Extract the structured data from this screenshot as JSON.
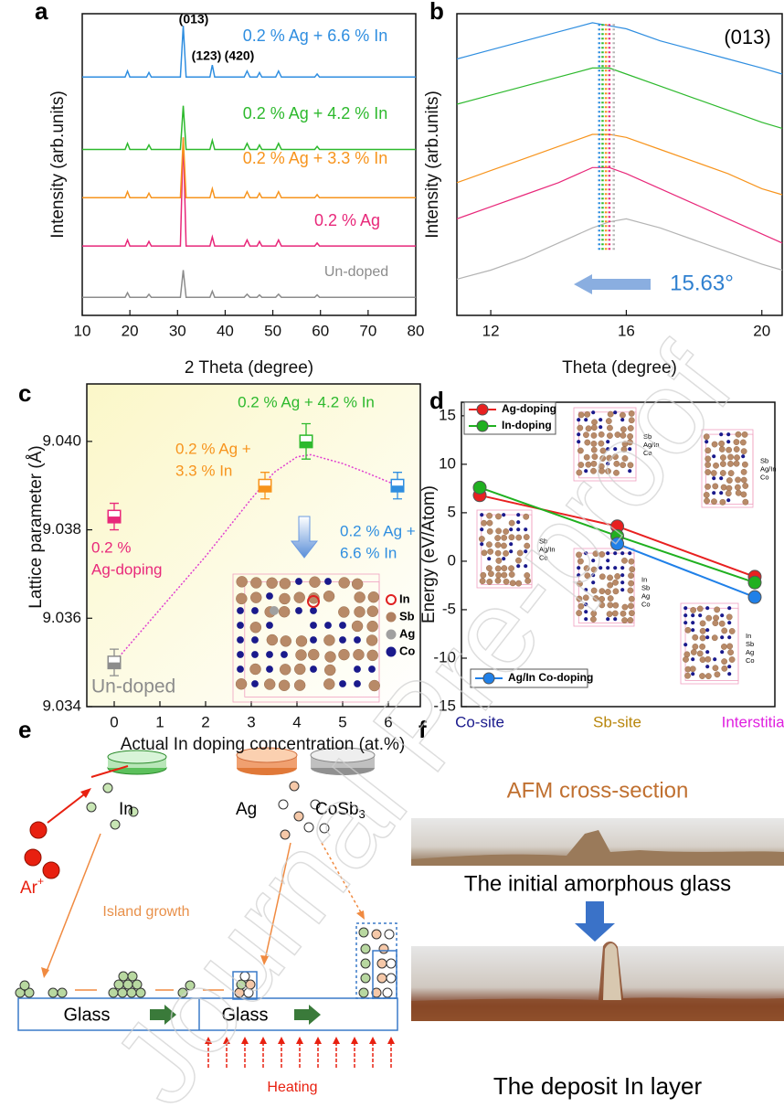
{
  "panel_labels": [
    "a",
    "b",
    "c",
    "d",
    "e",
    "f"
  ],
  "watermark": "Journal Pre-proof",
  "chart_data": [
    {
      "type": "line",
      "xlabel": "2 Theta (degree)",
      "ylabel": "Intensity (arb.units)",
      "xlim": [
        10,
        80
      ],
      "xticks": [
        10,
        20,
        30,
        40,
        50,
        60,
        70,
        80
      ],
      "ylim": [
        0,
        100
      ],
      "x": [
        10,
        19,
        19.5,
        20,
        23.5,
        24,
        24.5,
        30.6,
        31.2,
        31.8,
        36.8,
        37.3,
        37.8,
        44,
        44.6,
        45.2,
        46.7,
        47.2,
        47.7,
        50.6,
        51.2,
        51.8,
        58.8,
        59.3,
        59.8,
        80
      ],
      "series": [
        {
          "name": "Un-doped",
          "color": "#8c8c8c",
          "values": [
            6,
            6,
            7.5,
            6,
            6,
            7,
            6,
            6,
            15,
            6,
            6,
            8,
            6,
            6,
            7,
            6,
            6,
            6.8,
            6,
            6,
            7,
            6,
            6,
            6.8,
            6,
            6
          ]
        },
        {
          "name": "0.2 % Ag",
          "color": "#e8287a",
          "values": [
            23,
            23,
            25,
            23,
            23,
            24.5,
            23,
            23,
            59,
            23,
            23,
            26,
            23,
            23,
            25,
            23,
            23,
            24.5,
            23,
            23,
            25,
            23,
            23,
            24,
            23,
            23
          ]
        },
        {
          "name": "0.2 % Ag + 3.3 % In",
          "color": "#f7941d",
          "values": [
            39,
            39,
            41,
            39,
            39,
            40.5,
            39,
            39,
            59,
            39,
            39,
            42,
            39,
            39,
            41,
            39,
            39,
            40.5,
            39,
            39,
            41,
            39,
            39,
            40,
            39,
            39
          ]
        },
        {
          "name": "0.2 % Ag + 4.2 % In",
          "color": "#2db92d",
          "values": [
            55,
            55,
            57,
            55,
            55,
            56.5,
            55,
            55,
            69.5,
            55,
            55,
            58,
            55,
            55,
            57,
            55,
            55,
            56.5,
            55,
            55,
            57,
            55,
            55,
            56,
            55,
            55
          ]
        },
        {
          "name": "0.2 % Ag + 6.6 % In",
          "color": "#2f8ee0",
          "values": [
            79,
            79,
            81,
            79,
            79,
            80.5,
            79,
            79,
            96,
            79,
            79,
            83,
            79,
            79,
            81,
            79,
            79,
            80.5,
            79,
            79,
            81,
            79,
            79,
            80,
            79,
            79
          ]
        }
      ],
      "annotations": [
        "(013)",
        "(123)",
        "(420)"
      ]
    },
    {
      "type": "line",
      "xlabel": "Theta (degree)",
      "ylabel": "Intensity (arb.units)",
      "xlim": [
        11,
        20.6
      ],
      "xticks": [
        12,
        16,
        20
      ],
      "ylim": [
        0,
        100
      ],
      "x": [
        11,
        12,
        13,
        14,
        15,
        15.5,
        16,
        17,
        18,
        19,
        20,
        20.6
      ],
      "series": [
        {
          "color": "#b4b4b4",
          "values": [
            12,
            15,
            19,
            24,
            29,
            31,
            32,
            29,
            25,
            21,
            17,
            15
          ]
        },
        {
          "color": "#e8287a",
          "values": [
            32,
            36,
            40,
            44,
            49,
            49,
            47,
            42,
            37,
            32,
            27,
            24
          ]
        },
        {
          "color": "#f7941d",
          "values": [
            44,
            48,
            52,
            56,
            60,
            60,
            59,
            55,
            51,
            47,
            42,
            40
          ]
        },
        {
          "color": "#2db92d",
          "values": [
            70,
            73,
            76,
            79,
            82,
            82,
            80,
            76,
            72,
            68,
            64,
            62
          ]
        },
        {
          "color": "#2f8ee0",
          "values": [
            85,
            88,
            91,
            94,
            97,
            96,
            95,
            91,
            88,
            85,
            82,
            80
          ]
        }
      ],
      "peak_positions": [
        15.63,
        15.5,
        15.4,
        15.3,
        15.2
      ],
      "annotation": "(013)",
      "shift_label": "15.63°"
    },
    {
      "type": "scatter",
      "xlabel": "Actual In doping concentration (at.%)",
      "ylabel": "Lattice parameter (Å)",
      "xlim": [
        -0.6,
        6.7
      ],
      "xticks": [
        0,
        1,
        2,
        3,
        4,
        5,
        6
      ],
      "ylim": [
        9.034,
        9.0413
      ],
      "yticks": [
        9.034,
        9.036,
        9.038,
        9.04
      ],
      "yticklabels": [
        "9.034",
        "9.036",
        "9.038",
        "9.040"
      ],
      "x": [
        0,
        0,
        3.3,
        4.2,
        6.2
      ],
      "values": [
        9.0383,
        9.035,
        9.039,
        9.04,
        9.039
      ],
      "errors": [
        0.0003,
        0.0003,
        0.0003,
        0.0004,
        0.0003
      ],
      "colors": [
        "#e8287a",
        "#8c8c8c",
        "#f7941d",
        "#2db92d",
        "#2f8ee0"
      ],
      "point_labels": [
        [
          "0.2 %",
          "Ag-doping"
        ],
        [
          "Un-doped"
        ],
        [
          "0.2 % Ag +",
          "3.3 % In"
        ],
        [
          "0.2 % Ag + 4.2 % In"
        ],
        [
          "0.2 % Ag +",
          "6.6 % In"
        ]
      ],
      "fit": {
        "x": [
          0,
          1,
          2,
          3,
          3.5,
          4,
          4.3,
          5,
          5.5,
          6.2
        ],
        "values": [
          9.035,
          9.0362,
          9.0374,
          9.0387,
          9.0393,
          9.03965,
          9.0397,
          9.0395,
          9.0393,
          9.039
        ],
        "color": "#e040d0"
      },
      "inset_legend": [
        {
          "name": "In",
          "color": "#e02020"
        },
        {
          "name": "Sb",
          "color": "#b08060"
        },
        {
          "name": "Ag",
          "color": "#a0a0a0"
        },
        {
          "name": "Co",
          "color": "#1a1a8c"
        }
      ]
    },
    {
      "type": "line",
      "ylabel": "Energy (eV/Atom)",
      "categories": [
        "Co-site",
        "Sb-site",
        "Interstitial"
      ],
      "category_colors": [
        "#1a1a8c",
        "#b8860b",
        "#e020e0"
      ],
      "ylim": [
        -15,
        16.4
      ],
      "yticks": [
        -15,
        -10,
        -5,
        0,
        5,
        10,
        15
      ],
      "series": [
        {
          "name": "Ag-doping",
          "color": "#e82020",
          "values": [
            6.8,
            3.6,
            -1.6
          ]
        },
        {
          "name": "In-doping",
          "color": "#20b020",
          "values": [
            7.6,
            2.6,
            -2.2
          ]
        },
        {
          "name": "Ag/In Co-doping",
          "color": "#2080e8",
          "values": [
            null,
            1.8,
            -3.7
          ]
        }
      ],
      "insets": [
        [
          "Sb",
          "Ag/In",
          "Co"
        ],
        [
          "Sb",
          "Ag/In",
          "Co"
        ],
        [
          "Sb",
          "Ag/In",
          "Co"
        ],
        [
          "In",
          "Sb",
          "Ag",
          "Co"
        ],
        [
          "In",
          "Sb",
          "Ag",
          "Co"
        ]
      ]
    }
  ],
  "diagram_e": {
    "in": "In",
    "ar": "Ar",
    "ar_sup": "+",
    "ag": "Ag",
    "cosb": "CoSb",
    "cosb_sub": "3",
    "island": "Island growth",
    "glass": [
      "Glass",
      "Glass"
    ],
    "heating": "Heating"
  },
  "afm_f": {
    "title": "AFM cross-section",
    "caption_1": "The initial amorphous glass",
    "caption_2": "The deposit In layer"
  }
}
